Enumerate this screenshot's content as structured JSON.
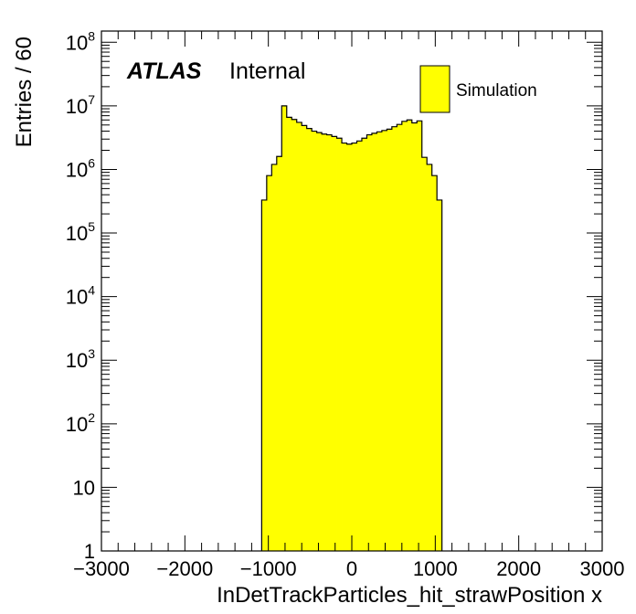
{
  "chart_data": {
    "type": "bar",
    "xlabel": "InDetTrackParticles_hit_strawPosition x",
    "ylabel": "Entries / 60",
    "xlim": [
      -3000,
      3000
    ],
    "ylim": [
      1,
      150000000
    ],
    "yscale": "log",
    "x_ticks": [
      "−3000",
      "−2000",
      "−1000",
      "0",
      "1000",
      "2000",
      "3000"
    ],
    "y_ticks": [
      {
        "base": "1",
        "exp": ""
      },
      {
        "base": "10",
        "exp": ""
      },
      {
        "base": "10",
        "exp": "2"
      },
      {
        "base": "10",
        "exp": "3"
      },
      {
        "base": "10",
        "exp": "4"
      },
      {
        "base": "10",
        "exp": "5"
      },
      {
        "base": "10",
        "exp": "6"
      },
      {
        "base": "10",
        "exp": "7"
      },
      {
        "base": "10",
        "exp": "8"
      }
    ],
    "bin_width": 60,
    "series": [
      {
        "name": "Simulation",
        "color": "#ffff00",
        "bins": [
          {
            "x": -1080,
            "y": 330000
          },
          {
            "x": -1020,
            "y": 800000
          },
          {
            "x": -960,
            "y": 1200000
          },
          {
            "x": -900,
            "y": 1600000
          },
          {
            "x": -840,
            "y": 10000000
          },
          {
            "x": -780,
            "y": 6600000
          },
          {
            "x": -720,
            "y": 6100000
          },
          {
            "x": -660,
            "y": 5500000
          },
          {
            "x": -600,
            "y": 4900000
          },
          {
            "x": -540,
            "y": 4400000
          },
          {
            "x": -480,
            "y": 4000000
          },
          {
            "x": -420,
            "y": 3800000
          },
          {
            "x": -360,
            "y": 3600000
          },
          {
            "x": -300,
            "y": 3500000
          },
          {
            "x": -240,
            "y": 3300000
          },
          {
            "x": -180,
            "y": 3100000
          },
          {
            "x": -120,
            "y": 2600000
          },
          {
            "x": -60,
            "y": 2500000
          },
          {
            "x": 0,
            "y": 2600000
          },
          {
            "x": 60,
            "y": 2800000
          },
          {
            "x": 120,
            "y": 3100000
          },
          {
            "x": 180,
            "y": 3500000
          },
          {
            "x": 240,
            "y": 3700000
          },
          {
            "x": 300,
            "y": 3900000
          },
          {
            "x": 360,
            "y": 4100000
          },
          {
            "x": 420,
            "y": 4300000
          },
          {
            "x": 480,
            "y": 4700000
          },
          {
            "x": 540,
            "y": 5100000
          },
          {
            "x": 600,
            "y": 5700000
          },
          {
            "x": 660,
            "y": 6000000
          },
          {
            "x": 720,
            "y": 5400000
          },
          {
            "x": 780,
            "y": 5800000
          },
          {
            "x": 840,
            "y": 1550000
          },
          {
            "x": 900,
            "y": 1200000
          },
          {
            "x": 960,
            "y": 800000
          },
          {
            "x": 1020,
            "y": 330000
          }
        ]
      }
    ],
    "atlas_label": "ATLAS",
    "status_label": "Internal",
    "legend_position": "top-right",
    "grid": false
  }
}
